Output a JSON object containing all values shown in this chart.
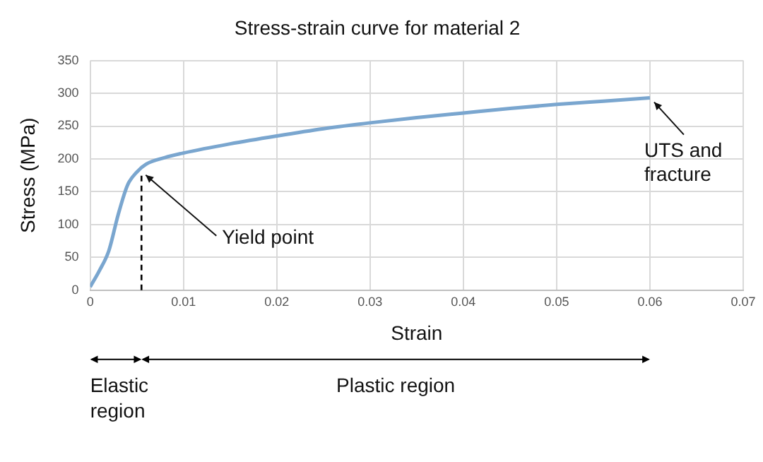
{
  "chart_data": {
    "type": "line",
    "title": "Stress-strain curve for material 2",
    "xlabel": "Strain",
    "ylabel": "Stress (MPa)",
    "x": [
      0,
      0.001,
      0.002,
      0.003,
      0.004,
      0.005,
      0.006,
      0.008,
      0.01,
      0.015,
      0.02,
      0.025,
      0.03,
      0.035,
      0.04,
      0.045,
      0.05,
      0.055,
      0.06
    ],
    "series": [
      {
        "color": "#7aa6cf",
        "values": [
          5,
          30,
          60,
          115,
          160,
          180,
          192,
          202,
          209,
          223,
          235,
          246,
          255,
          263,
          270,
          277,
          283,
          288,
          293
        ]
      }
    ],
    "xlim": [
      0,
      0.07
    ],
    "xticks": [
      0,
      0.01,
      0.02,
      0.03,
      0.04,
      0.05,
      0.06,
      0.07
    ],
    "ylim": [
      0,
      350
    ],
    "yticks": [
      0,
      50,
      100,
      150,
      200,
      250,
      300,
      350
    ],
    "grid": true,
    "legend": false,
    "marker": "none",
    "line_style": "solid",
    "ref_lines": [
      {
        "axis": "x",
        "value": 0.0055,
        "line_style": "dashed",
        "color": "#000000"
      }
    ],
    "annotations": [
      {
        "text": "Yield point",
        "x": 0.0055,
        "y": 182
      },
      {
        "text": "UTS and fracture",
        "x": 0.06,
        "y": 293
      },
      "Elastic region",
      "Plastic region"
    ]
  }
}
